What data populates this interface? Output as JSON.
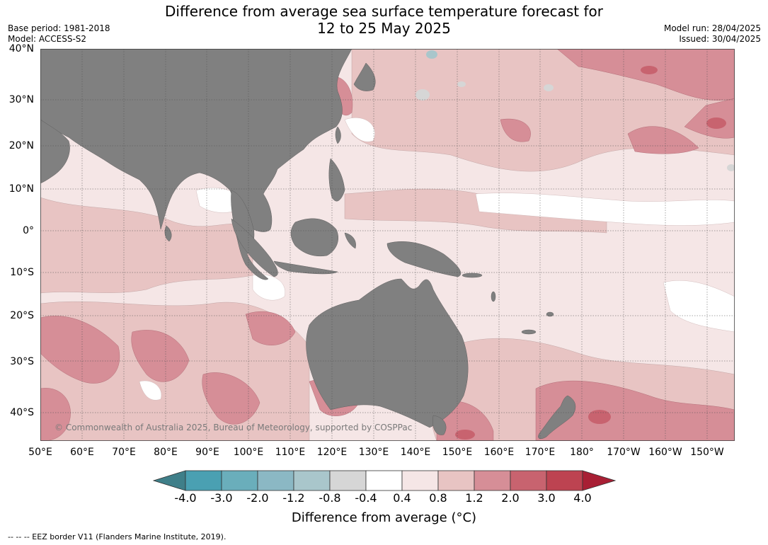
{
  "header": {
    "title_line1": "Difference from average sea surface temperature forecast for",
    "title_line2": "12 to 25 May 2025",
    "base_period": "Base period: 1981-2018",
    "model": "Model: ACCESS-S2",
    "model_run": "Model run: 28/04/2025",
    "issued": "Issued: 30/04/2025"
  },
  "map": {
    "latitude_labels": [
      "40°N",
      "30°N",
      "20°N",
      "10°N",
      "0°",
      "10°S",
      "20°S",
      "30°S",
      "40°S"
    ],
    "longitude_labels": [
      "50°E",
      "60°E",
      "70°E",
      "80°E",
      "90°E",
      "100°E",
      "110°E",
      "120°E",
      "130°E",
      "140°E",
      "150°E",
      "160°E",
      "170°E",
      "180°",
      "170°W",
      "160°W",
      "150°W"
    ],
    "credit": "© Commonwealth of Australia 2025, Bureau of Meteorology, supported by COSPPac",
    "land_color": "#808080"
  },
  "colorbar": {
    "ticks": [
      "-4.0",
      "-3.0",
      "-2.0",
      "-1.2",
      "-0.8",
      "-0.4",
      "0.4",
      "0.8",
      "1.2",
      "2.0",
      "3.0",
      "4.0"
    ],
    "colors": [
      "#3f7f89",
      "#4aa0b2",
      "#6aaebb",
      "#8bb8c4",
      "#a9c6cb",
      "#d6d6d6",
      "#ffffff",
      "#f5e6e6",
      "#e8c4c3",
      "#d68e97",
      "#c8636f",
      "#bd4351",
      "#a81f34"
    ],
    "label": "Difference from average (°C)"
  },
  "footer": {
    "eez_legend": "--  --  -- EEZ border V11 (Flanders Marine Institute, 2019)."
  }
}
